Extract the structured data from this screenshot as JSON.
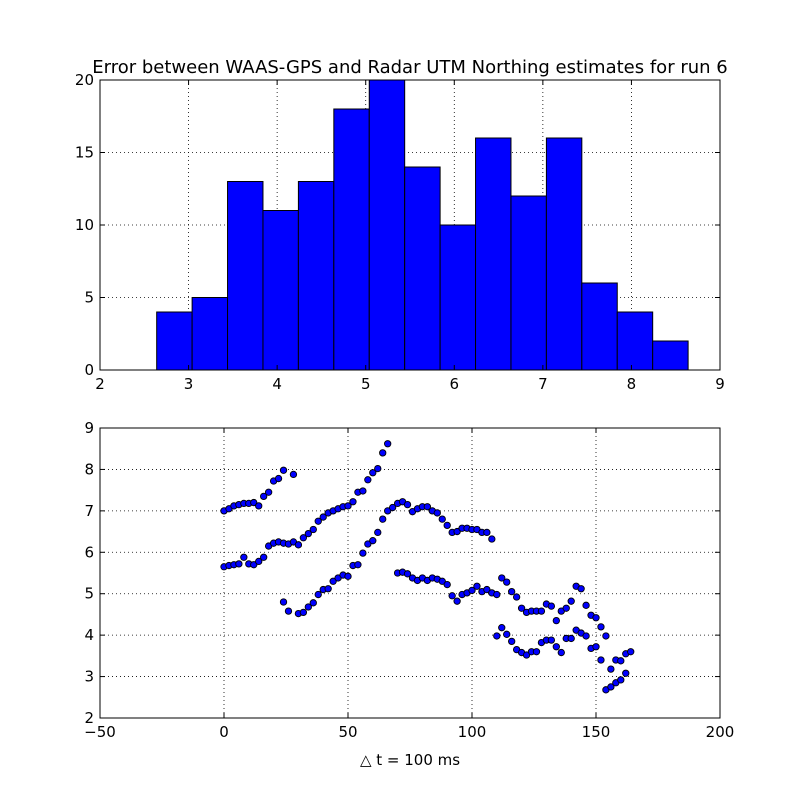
{
  "chart_data": [
    {
      "type": "bar",
      "title": "Error between WAAS-GPS and Radar UTM Northing estimates for run 6",
      "xlim": [
        2,
        9
      ],
      "ylim": [
        0,
        20
      ],
      "xticks": [
        2,
        3,
        4,
        5,
        6,
        7,
        8,
        9
      ],
      "yticks": [
        0,
        5,
        10,
        15,
        20
      ],
      "grid": true,
      "bin_edges": [
        2.64,
        3.04,
        3.44,
        3.84,
        4.24,
        4.64,
        5.04,
        5.44,
        5.84,
        6.24,
        6.64,
        7.04,
        7.44,
        7.84,
        8.24,
        8.64
      ],
      "values": [
        4,
        5,
        13,
        11,
        13,
        18,
        20,
        14,
        10,
        16,
        12,
        16,
        6,
        4,
        2
      ],
      "bar_color": "#0000ff"
    },
    {
      "type": "scatter",
      "xlabel": "△ t = 100 ms",
      "xlim": [
        -50,
        200
      ],
      "ylim": [
        2,
        9
      ],
      "xticks": [
        -50,
        0,
        50,
        100,
        150,
        200
      ],
      "yticks": [
        2,
        3,
        4,
        5,
        6,
        7,
        8,
        9
      ],
      "grid": true,
      "marker_color": "#0000ff",
      "points": [
        [
          0,
          7.0
        ],
        [
          2,
          7.05
        ],
        [
          4,
          7.12
        ],
        [
          6,
          7.15
        ],
        [
          8,
          7.18
        ],
        [
          10,
          7.18
        ],
        [
          12,
          7.2
        ],
        [
          14,
          7.12
        ],
        [
          16,
          7.35
        ],
        [
          18,
          7.45
        ],
        [
          20,
          7.72
        ],
        [
          22,
          7.78
        ],
        [
          24,
          7.98
        ],
        [
          28,
          7.88
        ],
        [
          0,
          5.65
        ],
        [
          2,
          5.68
        ],
        [
          4,
          5.7
        ],
        [
          6,
          5.72
        ],
        [
          8,
          5.88
        ],
        [
          10,
          5.72
        ],
        [
          12,
          5.7
        ],
        [
          14,
          5.78
        ],
        [
          16,
          5.88
        ],
        [
          18,
          6.15
        ],
        [
          20,
          6.22
        ],
        [
          22,
          6.25
        ],
        [
          24,
          6.22
        ],
        [
          26,
          6.2
        ],
        [
          28,
          6.25
        ],
        [
          30,
          6.18
        ],
        [
          32,
          6.35
        ],
        [
          34,
          6.45
        ],
        [
          36,
          6.55
        ],
        [
          38,
          6.75
        ],
        [
          40,
          6.85
        ],
        [
          42,
          6.95
        ],
        [
          44,
          7.0
        ],
        [
          46,
          7.05
        ],
        [
          48,
          7.1
        ],
        [
          50,
          7.12
        ],
        [
          52,
          7.22
        ],
        [
          54,
          7.45
        ],
        [
          56,
          7.48
        ],
        [
          58,
          7.75
        ],
        [
          60,
          7.92
        ],
        [
          62,
          8.02
        ],
        [
          64,
          8.4
        ],
        [
          66,
          8.62
        ],
        [
          24,
          4.8
        ],
        [
          26,
          4.58
        ],
        [
          30,
          4.52
        ],
        [
          32,
          4.55
        ],
        [
          34,
          4.68
        ],
        [
          36,
          4.78
        ],
        [
          38,
          4.98
        ],
        [
          40,
          5.1
        ],
        [
          42,
          5.12
        ],
        [
          44,
          5.3
        ],
        [
          46,
          5.38
        ],
        [
          48,
          5.45
        ],
        [
          50,
          5.42
        ],
        [
          52,
          5.68
        ],
        [
          54,
          5.7
        ],
        [
          56,
          5.98
        ],
        [
          58,
          6.2
        ],
        [
          60,
          6.28
        ],
        [
          62,
          6.48
        ],
        [
          64,
          6.8
        ],
        [
          66,
          7.0
        ],
        [
          68,
          7.08
        ],
        [
          70,
          7.18
        ],
        [
          72,
          7.22
        ],
        [
          74,
          7.15
        ],
        [
          76,
          6.98
        ],
        [
          78,
          7.05
        ],
        [
          80,
          7.1
        ],
        [
          82,
          7.1
        ],
        [
          84,
          7.0
        ],
        [
          86,
          6.95
        ],
        [
          88,
          6.8
        ],
        [
          90,
          6.65
        ],
        [
          92,
          6.48
        ],
        [
          94,
          6.5
        ],
        [
          96,
          6.58
        ],
        [
          98,
          6.58
        ],
        [
          100,
          6.55
        ],
        [
          102,
          6.55
        ],
        [
          104,
          6.48
        ],
        [
          106,
          6.48
        ],
        [
          108,
          6.32
        ],
        [
          70,
          5.5
        ],
        [
          72,
          5.52
        ],
        [
          74,
          5.48
        ],
        [
          76,
          5.38
        ],
        [
          78,
          5.32
        ],
        [
          80,
          5.38
        ],
        [
          82,
          5.32
        ],
        [
          84,
          5.38
        ],
        [
          86,
          5.35
        ],
        [
          88,
          5.3
        ],
        [
          90,
          5.22
        ],
        [
          92,
          4.95
        ],
        [
          94,
          4.82
        ],
        [
          96,
          4.98
        ],
        [
          98,
          5.02
        ],
        [
          100,
          5.08
        ],
        [
          102,
          5.18
        ],
        [
          104,
          5.05
        ],
        [
          106,
          5.1
        ],
        [
          108,
          5.02
        ],
        [
          110,
          4.98
        ],
        [
          112,
          5.38
        ],
        [
          114,
          5.28
        ],
        [
          116,
          5.05
        ],
        [
          118,
          4.92
        ],
        [
          120,
          4.65
        ],
        [
          122,
          4.55
        ],
        [
          124,
          4.58
        ],
        [
          126,
          4.58
        ],
        [
          128,
          4.58
        ],
        [
          130,
          4.75
        ],
        [
          132,
          4.7
        ],
        [
          134,
          4.35
        ],
        [
          136,
          4.58
        ],
        [
          138,
          4.65
        ],
        [
          140,
          4.82
        ],
        [
          142,
          5.18
        ],
        [
          144,
          5.12
        ],
        [
          146,
          4.72
        ],
        [
          148,
          4.48
        ],
        [
          150,
          4.42
        ],
        [
          152,
          4.2
        ],
        [
          110,
          3.98
        ],
        [
          112,
          4.18
        ],
        [
          114,
          4.02
        ],
        [
          116,
          3.85
        ],
        [
          118,
          3.65
        ],
        [
          120,
          3.58
        ],
        [
          122,
          3.52
        ],
        [
          124,
          3.6
        ],
        [
          126,
          3.6
        ],
        [
          128,
          3.82
        ],
        [
          130,
          3.88
        ],
        [
          132,
          3.88
        ],
        [
          134,
          3.72
        ],
        [
          136,
          3.58
        ],
        [
          138,
          3.92
        ],
        [
          140,
          3.92
        ],
        [
          142,
          4.12
        ],
        [
          144,
          4.05
        ],
        [
          146,
          3.98
        ],
        [
          148,
          3.68
        ],
        [
          150,
          3.72
        ],
        [
          152,
          3.4
        ],
        [
          154,
          3.98
        ],
        [
          156,
          3.18
        ],
        [
          158,
          3.4
        ],
        [
          160,
          3.38
        ],
        [
          162,
          3.55
        ],
        [
          164,
          3.6
        ],
        [
          154,
          2.68
        ],
        [
          156,
          2.75
        ],
        [
          158,
          2.85
        ],
        [
          160,
          2.92
        ],
        [
          162,
          3.08
        ]
      ]
    }
  ]
}
